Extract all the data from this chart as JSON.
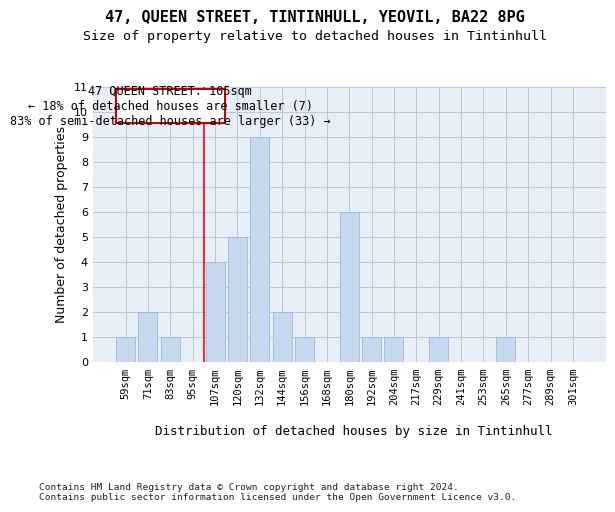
{
  "title1": "47, QUEEN STREET, TINTINHULL, YEOVIL, BA22 8PG",
  "title2": "Size of property relative to detached houses in Tintinhull",
  "xlabel": "Distribution of detached houses by size in Tintinhull",
  "ylabel": "Number of detached properties",
  "categories": [
    "59sqm",
    "71sqm",
    "83sqm",
    "95sqm",
    "107sqm",
    "120sqm",
    "132sqm",
    "144sqm",
    "156sqm",
    "168sqm",
    "180sqm",
    "192sqm",
    "204sqm",
    "217sqm",
    "229sqm",
    "241sqm",
    "253sqm",
    "265sqm",
    "277sqm",
    "289sqm",
    "301sqm"
  ],
  "values": [
    1,
    2,
    1,
    0,
    4,
    5,
    9,
    2,
    1,
    0,
    6,
    1,
    1,
    0,
    1,
    0,
    0,
    1,
    0,
    0,
    0
  ],
  "bar_color": "#c5d8f0",
  "bar_edge_color": "#a0b8d8",
  "grid_color": "#b8c8d8",
  "background_color": "#e8eef6",
  "annotation_box_text": "47 QUEEN STREET: 105sqm\n← 18% of detached houses are smaller (7)\n83% of semi-detached houses are larger (33) →",
  "annotation_box_color": "#ffffff",
  "annotation_box_edge_color": "#cc0000",
  "ylim_max": 11,
  "footnote": "Contains HM Land Registry data © Crown copyright and database right 2024.\nContains public sector information licensed under the Open Government Licence v3.0."
}
